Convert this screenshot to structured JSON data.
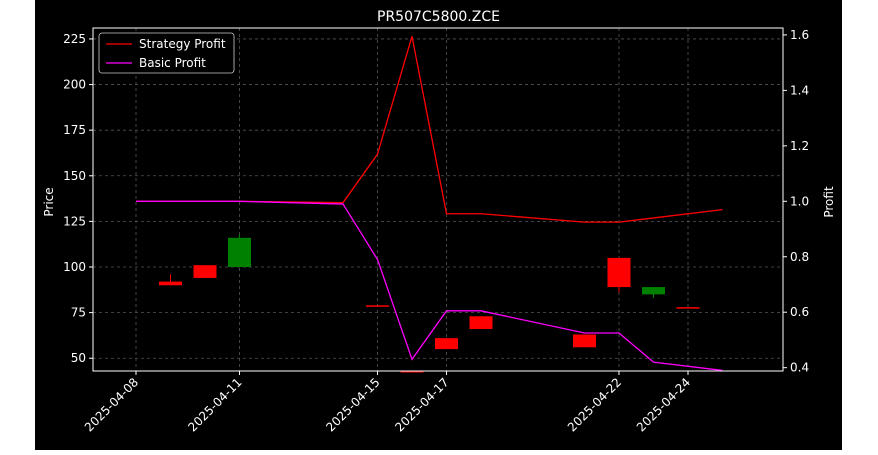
{
  "chart_data": {
    "type": "candlestick+line",
    "title": "PR507C5800.ZCE",
    "ylabel_left": "Price",
    "ylabel_right": "Profit",
    "xlabel": "",
    "ylim_left": [
      43,
      231
    ],
    "ylim_right": [
      0.388,
      1.625
    ],
    "left_ticks": [
      50,
      75,
      100,
      125,
      150,
      175,
      200,
      225
    ],
    "right_ticks": [
      "0.4",
      "0.6",
      "0.8",
      "1.0",
      "1.2",
      "1.4",
      "1.6"
    ],
    "right_tick_values": [
      0.4,
      0.6,
      0.8,
      1.0,
      1.2,
      1.4,
      1.6
    ],
    "x_ticks": [
      "2025-04-08",
      "2025-04-11",
      "2025-04-15",
      "2025-04-17",
      "2025-04-22",
      "2025-04-24"
    ],
    "grid": true,
    "legend_position": "top-left",
    "dates": [
      "2025-04-08",
      "2025-04-09",
      "2025-04-10",
      "2025-04-11",
      "2025-04-14",
      "2025-04-15",
      "2025-04-16",
      "2025-04-17",
      "2025-04-18",
      "2025-04-21",
      "2025-04-22",
      "2025-04-23",
      "2025-04-24",
      "2025-04-25"
    ],
    "candles": [
      {
        "date": "2025-04-09",
        "open": 92,
        "close": 90,
        "high": 96,
        "low": 90
      },
      {
        "date": "2025-04-10",
        "open": 101,
        "close": 94,
        "high": 101,
        "low": 94
      },
      {
        "date": "2025-04-11",
        "open": 100,
        "close": 116,
        "high": 118,
        "low": 100
      },
      {
        "date": "2025-04-15",
        "open": 79,
        "close": 79,
        "high": 79,
        "low": 79
      },
      {
        "date": "2025-04-16",
        "open": 43,
        "close": 43,
        "high": 43,
        "low": 43
      },
      {
        "date": "2025-04-17",
        "open": 61,
        "close": 55,
        "high": 61,
        "low": 55
      },
      {
        "date": "2025-04-18",
        "open": 73,
        "close": 66,
        "high": 73,
        "low": 66
      },
      {
        "date": "2025-04-21",
        "open": 63,
        "close": 56,
        "high": 63,
        "low": 56
      },
      {
        "date": "2025-04-22",
        "open": 105,
        "close": 89,
        "high": 105,
        "low": 86
      },
      {
        "date": "2025-04-23",
        "open": 85,
        "close": 89,
        "high": 89,
        "low": 83
      },
      {
        "date": "2025-04-24",
        "open": 78,
        "close": 78,
        "high": 78,
        "low": 78
      }
    ],
    "series": [
      {
        "name": "Strategy Profit",
        "color": "#ff0000",
        "x": [
          "2025-04-08",
          "2025-04-11",
          "2025-04-14",
          "2025-04-15",
          "2025-04-16",
          "2025-04-17",
          "2025-04-18",
          "2025-04-21",
          "2025-04-22",
          "2025-04-23",
          "2025-04-25"
        ],
        "values": [
          1.0,
          1.0,
          0.995,
          1.17,
          1.595,
          0.955,
          0.955,
          0.925,
          0.925,
          0.94,
          0.97
        ]
      },
      {
        "name": "Basic Profit",
        "color": "#ff00ff",
        "x": [
          "2025-04-08",
          "2025-04-11",
          "2025-04-14",
          "2025-04-15",
          "2025-04-16",
          "2025-04-17",
          "2025-04-18",
          "2025-04-21",
          "2025-04-22",
          "2025-04-23",
          "2025-04-25"
        ],
        "values": [
          1.0,
          1.0,
          0.99,
          0.79,
          0.43,
          0.605,
          0.605,
          0.525,
          0.525,
          0.42,
          0.39
        ]
      }
    ],
    "up_color": "#008000",
    "down_color": "#ff0000"
  }
}
